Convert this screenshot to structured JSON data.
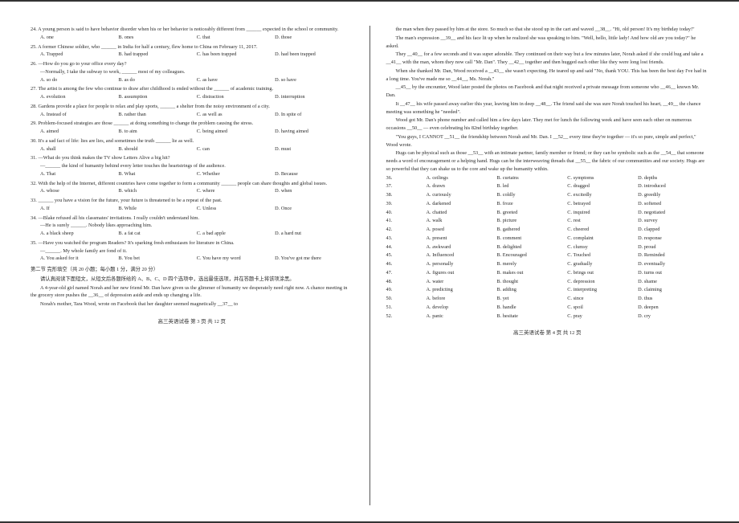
{
  "left": {
    "questions": [
      {
        "n": 24,
        "text": "A young person is said to have behavior disorder when his or her behavior is noticeably different from ______ expected in the school or community.",
        "opts": [
          "A. one",
          "B. ones",
          "C. that",
          "D. those"
        ]
      },
      {
        "n": 25,
        "text": "A former Chinese soldier, who ______ in India for half a century, flew home to China on February 11, 2017.",
        "opts": [
          "A. Trapped",
          "B. had trapped",
          "C. has been trapped",
          "D. had been trapped"
        ]
      },
      {
        "n": 26,
        "text": "—How do you go to your office every day?",
        "text2": "—Normally, I take the subway to work, ______ most of my colleagues.",
        "opts": [
          "A. so do",
          "B. as do",
          "C. as have",
          "D. so have"
        ]
      },
      {
        "n": 27,
        "text": "The artist is among the few who continue to draw after childhood is ended without the ______ of academic training.",
        "opts": [
          "A. evolution",
          "B. assumption",
          "C. distraction",
          "D. interruption"
        ]
      },
      {
        "n": 28,
        "text": "Gardens provide a place for people to relax and play sports, ______ a shelter from the noisy environment of a city.",
        "opts": [
          "A. Instead of",
          "B. rather than",
          "C. as well as",
          "D. In spite of"
        ]
      },
      {
        "n": 29,
        "text": "Problem-focused strategies are those ______ at doing something to change the problem causing the stress.",
        "opts": [
          "A. aimed",
          "B. to aim",
          "C. being aimed",
          "D. having aimed"
        ]
      },
      {
        "n": 30,
        "text": "It's a sad fact of life: lies are lies, and sometimes the truth ______ lie as well.",
        "opts": [
          "A. shall",
          "B. should",
          "C. can",
          "D. must"
        ]
      },
      {
        "n": 31,
        "text": "—What do you think makes the TV show Letters Alive a big hit?",
        "text2": "—______ the kind of humanity behind every letter touches the heartstrings of the audience.",
        "opts": [
          "A. That",
          "B. What",
          "C. Whether",
          "D. Because"
        ]
      },
      {
        "n": 32,
        "text": "With the help of the Internet, different countries have come together to form a community ______ people can share thoughts and global issues.",
        "opts": [
          "A. whose",
          "B. which",
          "C. where",
          "D. when"
        ]
      },
      {
        "n": 33,
        "text": "______ you have a vision for the future, your future is threatened to be a repeat of the past.",
        "opts": [
          "A. If",
          "B. While",
          "C. Unless",
          "D. Once"
        ]
      },
      {
        "n": 34,
        "text": "—Blake refused all his classmates' invitations. I really couldn't understand him.",
        "text2": "—He is surely ______. Nobody likes approaching him.",
        "opts": [
          "A. a black sheep",
          "B. a fat cat",
          "C. a bad apple",
          "D. a hard nut"
        ]
      },
      {
        "n": 35,
        "text": "—Have you watched the program Readers? It's sparking fresh enthusiasm for literature in China.",
        "text2": "—______. My whole family are fond of it.",
        "opts": [
          "A. You asked for it",
          "B. You bet",
          "C. You have my word",
          "D. You've got me there"
        ]
      }
    ],
    "section2_head": "第二节 完形填空（共 20 小题；每小题 1 分，满分 20 分）",
    "section2_inst": "请认真阅读下面短文，从短文后各题所给的 A、B、C、D 四个选项中，选出最佳选项，并在答题卡上将该项涂黑。",
    "cloze_p1": "A 4-year-old girl named Norah and her new friend Mr. Dan have given us the glimmer of humanity we desperately need right now. A chance meeting in the grocery store pushes the __36__ of depression aside and ends up changing a life.",
    "cloze_p2": "Norah's mother, Tara Wood, wrote on Facebook that her daughter seemed magnetically __37__ to",
    "footer": "高三英语试卷 第 3 页 共 12 页"
  },
  "right": {
    "cloze_cont": [
      "the man when they passed by him at the store. So much so that she stood up in the cart and waved __38__. \"Hi, old person! It's my birthday today!\"",
      "The man's expression __39__ and his face lit up when he realized she was speaking to him. \"Well, hello, little lady! And how old are you today?\" he asked.",
      "They __40__ for a few seconds and it was super adorable. They continued on their way but a few minutes later, Norah asked if she could hug and take a __41__ with the man, whom they now call \"Mr. Dan\". They __42__ together and then hugged each other like they were long lost friends.",
      "When she thanked Mr. Dan, Wood received a __43__ she wasn't expecting. He teared up and said \"No, thank YOU. This has been the best day I've had in a long time. You've made me so __44__, Ms. Norah.\"",
      "__45__ by the encounter, Wood later posted the photos on Facebook and that night received a private message from someone who __46__ known Mr. Dan.",
      "It __47__ his wife passed away earlier this year, leaving him in deep __48__. The friend said she was sure Norah touched his heart, __49__ the chance meeting was something he \"needed\".",
      "Wood got Mr. Dan's phone number and called him a few days later. They met for lunch the following week and have seen each other on numerous occasions __50__ — even celebrating his 82nd birthday together.",
      "\"You guys, I CANNOT __51__ the friendship between Norah and Mr. Dan. I __52__ every time they're together — it's so pure, simple and perfect,\" Wood wrote.",
      "Hugs can be physical such as those __53__ with an intimate partner, family member or friend; or they can be symbolic such as the __54__ that someone needs a word of encouragement or a helping hand. Hugs can be the interweaving threads that __55__ the fabric of our communities and our society. Hugs are so powerful that they can shake us to the core and wake up the humanity within."
    ],
    "answers": [
      {
        "n": 36,
        "opts": [
          "A. ceilings",
          "B. curtains",
          "C. symptoms",
          "D. depths"
        ]
      },
      {
        "n": 37,
        "opts": [
          "A. drawn",
          "B. led",
          "C. dragged",
          "D. introduced"
        ]
      },
      {
        "n": 38,
        "opts": [
          "A. curiously",
          "B. coldly",
          "C. excitedly",
          "D. greedily"
        ]
      },
      {
        "n": 39,
        "opts": [
          "A. darkened",
          "B. froze",
          "C. betrayed",
          "D. softened"
        ]
      },
      {
        "n": 40,
        "opts": [
          "A. chatted",
          "B. greeted",
          "C. inquired",
          "D. negotiated"
        ]
      },
      {
        "n": 41,
        "opts": [
          "A. walk",
          "B. picture",
          "C. rest",
          "D. survey"
        ]
      },
      {
        "n": 42,
        "opts": [
          "A. posed",
          "B. gathered",
          "C. cheered",
          "D. clapped"
        ]
      },
      {
        "n": 43,
        "opts": [
          "A. present",
          "B. comment",
          "C. complaint",
          "D. response"
        ]
      },
      {
        "n": 44,
        "opts": [
          "A. awkward",
          "B. delighted",
          "C. clumsy",
          "D. proud"
        ]
      },
      {
        "n": 45,
        "opts": [
          "A. Influenced",
          "B. Encouraged",
          "C. Touched",
          "D. Reminded"
        ]
      },
      {
        "n": 46,
        "opts": [
          "A. personally",
          "B. merely",
          "C. gradually",
          "D. eventually"
        ]
      },
      {
        "n": 47,
        "opts": [
          "A. figures out",
          "B. makes out",
          "C. brings out",
          "D. turns out"
        ]
      },
      {
        "n": 48,
        "opts": [
          "A. water",
          "B. thought",
          "C. depression",
          "D. shame"
        ]
      },
      {
        "n": 49,
        "opts": [
          "A. predicting",
          "B. adding",
          "C. interpreting",
          "D. claiming"
        ]
      },
      {
        "n": 50,
        "opts": [
          "A. before",
          "B. yet",
          "C. since",
          "D. thus"
        ]
      },
      {
        "n": 51,
        "opts": [
          "A. develop",
          "B. handle",
          "C. spoil",
          "D. deepen"
        ]
      },
      {
        "n": 52,
        "opts": [
          "A. panic",
          "B. hesitate",
          "C. pray",
          "D. cry"
        ]
      }
    ],
    "footer": "高三英语试卷 第 4 页 共 12 页"
  }
}
